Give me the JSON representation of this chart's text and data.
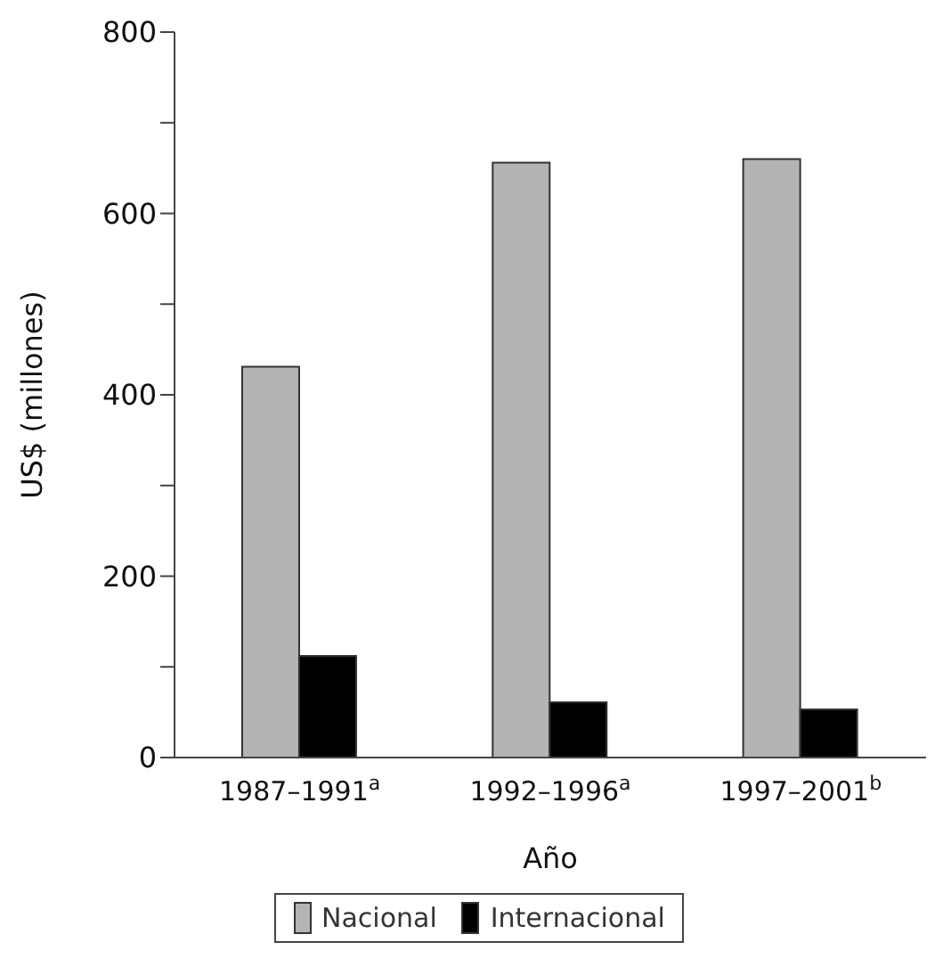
{
  "chart_data": {
    "type": "bar",
    "categories": [
      "1987–1991$^{a}$",
      "1992–1996$^{a}$",
      "1997–2001$^{b}$"
    ],
    "series": [
      {
        "name": "Nacional",
        "color": "#b4b4b4",
        "values": [
          431,
          656,
          660
        ]
      },
      {
        "name": "Internacional",
        "color": "#000000",
        "values": [
          112,
          61,
          53
        ]
      }
    ],
    "xlabel": "Año",
    "ylabel": "US$ (millones)",
    "ylim": [
      0,
      800
    ],
    "yticks": [
      0,
      {
        "value": 100,
        "label": null
      },
      200,
      {
        "value": 300,
        "label": null
      },
      400,
      {
        "value": 500,
        "label": null
      },
      600,
      {
        "value": 700,
        "label": null
      },
      800
    ],
    "legend": "bottom",
    "grid": false
  }
}
